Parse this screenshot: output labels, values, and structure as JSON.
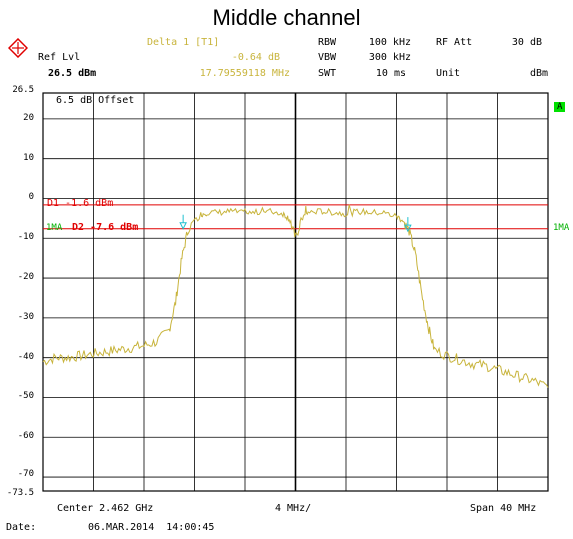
{
  "title": "Middle channel",
  "header": {
    "marker_label": "Delta 1 [T1]",
    "marker_level": "-0.64 dB",
    "marker_freq": "17.79559118 MHz",
    "ref_lvl_label": "Ref Lvl",
    "ref_lvl_value": "26.5 dBm",
    "rbw_label": "RBW",
    "rbw_value": "100 kHz",
    "vbw_label": "VBW",
    "vbw_value": "300 kHz",
    "swt_label": "SWT",
    "swt_value": "10 ms",
    "rf_att_label": "RF Att",
    "rf_att_value": "30 dB",
    "unit_label": "Unit",
    "unit_value": "dBm"
  },
  "plot": {
    "offset_label": "6.5 dB Offset",
    "trace_badge": "A",
    "d1_label": "D1 -1.6 dBm",
    "d2_label": "D2 -7.6 dBm",
    "tag_1ma_left": "1MA",
    "tag_1ma_right": "1MA"
  },
  "footer": {
    "center": "Center 2.462 GHz",
    "div": "4 MHz/",
    "span": "Span 40 MHz",
    "date_label": "Date:",
    "date_value": "06.MAR.2014  14:00:45"
  },
  "colors": {
    "trace": "#c8b43c",
    "display_line": "#e00000",
    "grid": "#000000",
    "marker": "#20c0d0",
    "trace_tag": "#00c000"
  },
  "chart_data": {
    "type": "line",
    "x_unit": "GHz",
    "x_center": 2.462,
    "x_span": 40,
    "xlim": [
      2.442,
      2.482
    ],
    "ylim": [
      -73.5,
      26.5
    ],
    "y_ticks": [
      26.5,
      20,
      10,
      0,
      -10,
      -20,
      -30,
      -40,
      -50,
      -60,
      -70,
      -73.5
    ],
    "grid": true,
    "display_lines": [
      {
        "label": "D1",
        "value": -1.6
      },
      {
        "label": "D2",
        "value": -7.6
      }
    ],
    "markers": [
      {
        "x": 2.4531,
        "y": -7.6
      },
      {
        "x": 2.4709,
        "y": -8.2
      }
    ],
    "series": [
      {
        "x": [
          2.442,
          2.443,
          2.444,
          2.445,
          2.446,
          2.447,
          2.448,
          2.449,
          2.45,
          2.451,
          2.452,
          2.4525,
          2.453,
          2.4535,
          2.4545,
          2.455,
          2.456,
          2.457,
          2.458,
          2.459,
          2.46,
          2.461,
          2.4615,
          2.462,
          2.4625,
          2.463,
          2.464,
          2.465,
          2.466,
          2.467,
          2.468,
          2.469,
          2.47,
          2.4705,
          2.471,
          2.4715,
          2.472,
          2.4725,
          2.473,
          2.474,
          2.475,
          2.476,
          2.477,
          2.478,
          2.479,
          2.48,
          2.481,
          2.482
        ],
        "values": [
          -41,
          -40,
          -40,
          -39.5,
          -39,
          -38.5,
          -38,
          -37.5,
          -37,
          -36,
          -33,
          -26,
          -15,
          -7.6,
          -4,
          -3.5,
          -3.5,
          -3.2,
          -3.8,
          -3.5,
          -3.2,
          -3.8,
          -5,
          -10,
          -5,
          -3.5,
          -3.2,
          -3.5,
          -3.8,
          -3.3,
          -3.5,
          -3.6,
          -4.5,
          -5.5,
          -8.2,
          -14,
          -24,
          -32,
          -38,
          -39.5,
          -40.5,
          -41.5,
          -42,
          -43,
          -44,
          -45,
          -46,
          -47.5
        ]
      }
    ]
  }
}
